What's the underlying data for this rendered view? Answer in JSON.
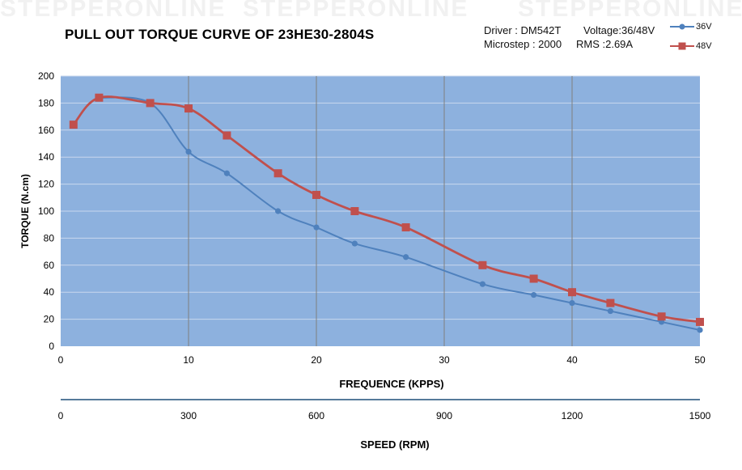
{
  "header": {
    "title": "PULL OUT TORQUE CURVE OF 23HE30-2804S",
    "driver": "Driver : DM542T",
    "voltage": "Voltage:36/48V",
    "microstep": "Microstep : 2000",
    "rms": "RMS :2.69A"
  },
  "watermark_text": "STEPPERONLINE",
  "colors": {
    "plot_bg": "#8db1de",
    "series_36v": "#4f81bd",
    "series_48v": "#c0504d",
    "grid": "#7f7f7f",
    "axis_line": "#1f4e79"
  },
  "chart_data": {
    "type": "line",
    "title": "PULL OUT TORQUE CURVE OF 23HE30-2804S",
    "xlabel": "FREQUENCE (KPPS)",
    "ylabel": "TORQUE (N.cm)",
    "secondary_xlabel": "SPEED (RPM)",
    "xlim": [
      0,
      50
    ],
    "ylim": [
      0,
      200
    ],
    "x_ticks": [
      "0",
      "10",
      "20",
      "30",
      "40",
      "50"
    ],
    "y_ticks": [
      "0",
      "20",
      "40",
      "60",
      "80",
      "100",
      "120",
      "140",
      "160",
      "180",
      "200"
    ],
    "secondary_x_ticks": [
      "0",
      "300",
      "600",
      "900",
      "1200",
      "1500"
    ],
    "grid": "vertical and horizontal",
    "legend_position": "top-right",
    "series": [
      {
        "name": "36V",
        "marker": "circle",
        "x": [
          3,
          7,
          10,
          13,
          17,
          20,
          23,
          27,
          33,
          37,
          40,
          43,
          47,
          50
        ],
        "y": [
          184,
          180,
          144,
          128,
          100,
          88,
          76,
          66,
          46,
          38,
          32,
          26,
          18,
          12
        ]
      },
      {
        "name": "48V",
        "marker": "square",
        "x": [
          1,
          3,
          7,
          10,
          13,
          17,
          20,
          23,
          27,
          33,
          37,
          40,
          43,
          47,
          50
        ],
        "y": [
          164,
          184,
          180,
          176,
          156,
          128,
          112,
          100,
          88,
          60,
          50,
          40,
          32,
          22,
          18
        ]
      }
    ]
  }
}
